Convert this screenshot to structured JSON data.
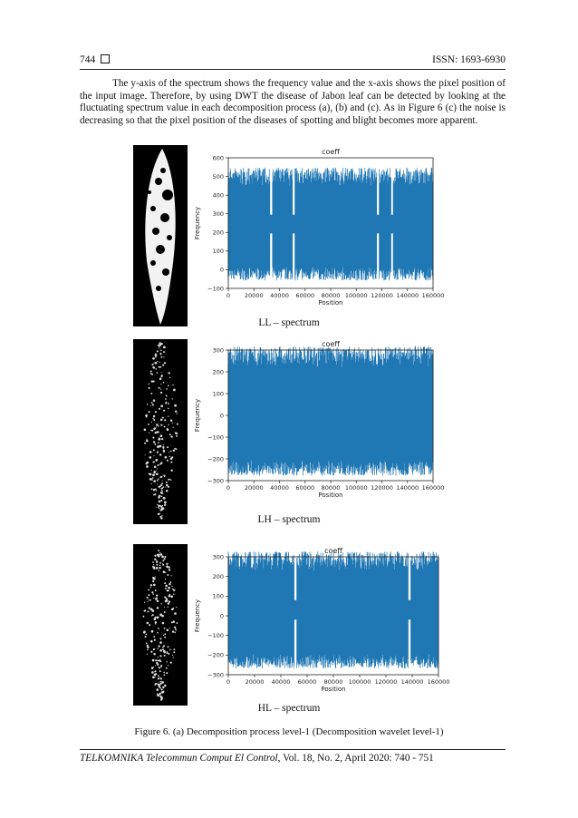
{
  "header": {
    "page_number": "744",
    "issn": "ISSN: 1693-6930"
  },
  "body_text": "The y-axis of the spectrum shows the frequency value and the x-axis shows the pixel position of the input image. Therefore, by using DWT the disease of Jabon leaf can be detected by looking at the fluctuating spectrum value in each decomposition process (a), (b) and (c). As in Figure 6 (c) the noise is decreasing so that the pixel position of the diseases of spotting and blight becomes more apparent.",
  "panels": [
    {
      "caption": "LL – spectrum"
    },
    {
      "caption": "LH – spectrum"
    },
    {
      "caption": "HL – spectrum"
    }
  ],
  "figure_caption": "Figure 6. (a) Decomposition process level-1 (Decomposition wavelet level-1)",
  "footer": {
    "journal": "TELKOMNIKA Telecommun Comput El Control",
    "rest": ", Vol. 18, No. 2, April 2020:  740 - 751"
  },
  "colors": {
    "series": "#1f77b4",
    "leaf_bg": "#000000",
    "leaf_fg": "#ffffff"
  },
  "chart_data": [
    {
      "type": "line",
      "title": "coeff",
      "xlabel": "Position",
      "ylabel": "Frequency",
      "xlim": [
        0,
        160000
      ],
      "ylim": [
        -100,
        600
      ],
      "xticks": [
        0,
        20000,
        40000,
        60000,
        80000,
        100000,
        120000,
        140000,
        160000
      ],
      "yticks": [
        -100,
        0,
        100,
        200,
        300,
        400,
        500,
        600
      ],
      "series": [
        {
          "values_range": [
            -70,
            560
          ],
          "gaps_at": [
            33500,
            51000,
            117000,
            128000
          ]
        }
      ]
    },
    {
      "type": "line",
      "title": "coeff",
      "xlabel": "Position",
      "ylabel": "Frequency",
      "xlim": [
        0,
        160000
      ],
      "ylim": [
        -300,
        300
      ],
      "xticks": [
        0,
        20000,
        40000,
        60000,
        80000,
        100000,
        120000,
        140000,
        160000
      ],
      "yticks": [
        -300,
        -200,
        -100,
        0,
        100,
        200,
        300
      ],
      "series": [
        {
          "values_range": [
            -290,
            330
          ]
        }
      ]
    },
    {
      "type": "line",
      "title": "coeff",
      "xlabel": "Position",
      "ylabel": "Frequency",
      "xlim": [
        0,
        160000
      ],
      "ylim": [
        -300,
        300
      ],
      "xticks": [
        0,
        20000,
        40000,
        60000,
        80000,
        100000,
        120000,
        140000,
        160000
      ],
      "yticks": [
        -300,
        -200,
        -100,
        0,
        100,
        200,
        300
      ],
      "series": [
        {
          "values_range": [
            -280,
            340
          ],
          "gaps_at": [
            51000,
            138000
          ]
        }
      ]
    }
  ]
}
